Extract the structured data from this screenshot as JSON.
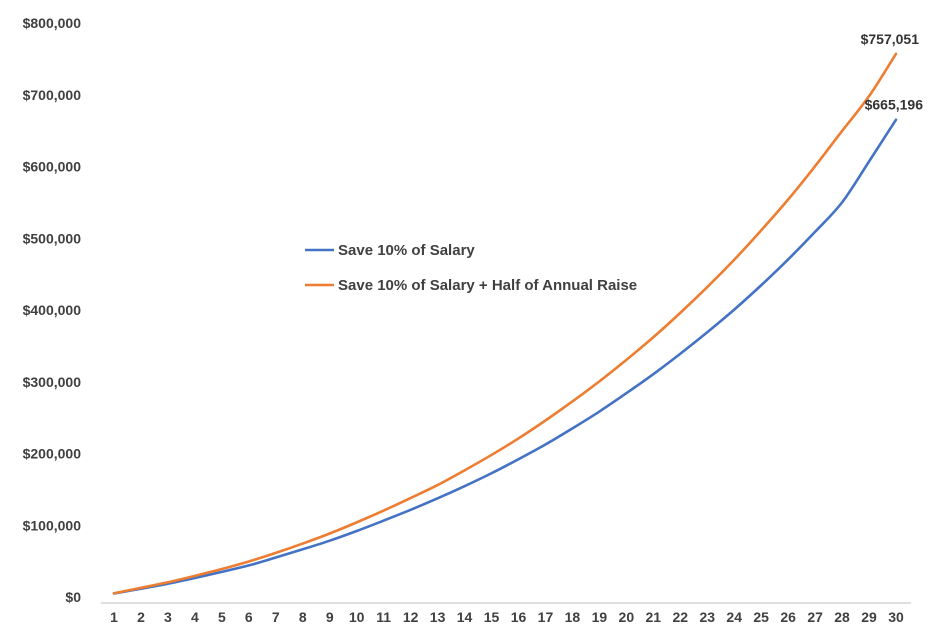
{
  "chart_data": {
    "type": "line",
    "title": "",
    "xlabel": "",
    "ylabel": "",
    "x": [
      1,
      2,
      3,
      4,
      5,
      6,
      7,
      8,
      9,
      10,
      11,
      12,
      13,
      14,
      15,
      16,
      17,
      18,
      19,
      20,
      21,
      22,
      23,
      24,
      25,
      26,
      27,
      28,
      29,
      30
    ],
    "ylim": [
      0,
      800000
    ],
    "yticks": [
      0,
      100000,
      200000,
      300000,
      400000,
      500000,
      600000,
      700000,
      800000
    ],
    "ytick_labels": [
      "$0",
      "$100,000",
      "$200,000",
      "$300,000",
      "$400,000",
      "$500,000",
      "$600,000",
      "$700,000",
      "$800,000"
    ],
    "grid": false,
    "legend": {
      "position": "center"
    },
    "series": [
      {
        "name": "Save 10% of Salary",
        "color": "#4472C4",
        "values": [
          5000,
          11500,
          18500,
          26500,
          35000,
          44000,
          55000,
          66500,
          78500,
          92000,
          106500,
          121500,
          137500,
          154500,
          172500,
          192000,
          212500,
          235000,
          258500,
          284000,
          310500,
          339000,
          369000,
          400500,
          434500,
          470500,
          509000,
          550000,
          607000,
          665196
        ],
        "end_label": "$665,196"
      },
      {
        "name": "Save 10% of Salary + Half of Annual Raise",
        "color": "#ED7D31",
        "values": [
          5200,
          12800,
          20500,
          29500,
          39000,
          49500,
          61500,
          74500,
          88500,
          104000,
          120500,
          138000,
          156000,
          176500,
          198000,
          221000,
          246000,
          272500,
          300500,
          330500,
          362000,
          396000,
          432000,
          470000,
          511000,
          554000,
          600500,
          649500,
          698000,
          757051
        ],
        "end_label": "$757,051"
      }
    ]
  }
}
